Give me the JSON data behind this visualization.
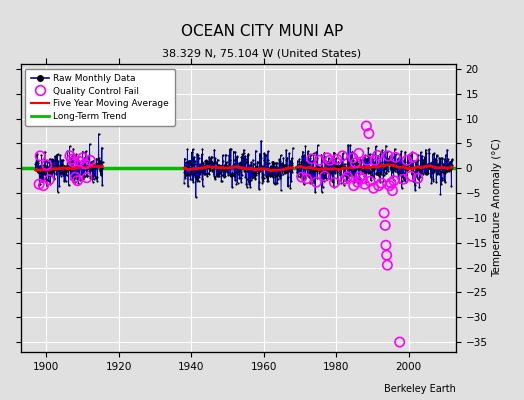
{
  "title": "OCEAN CITY MUNI AP",
  "subtitle": "38.329 N, 75.104 W (United States)",
  "ylabel": "Temperature Anomaly (°C)",
  "credit": "Berkeley Earth",
  "xlim": [
    1893,
    2013
  ],
  "ylim": [
    -37,
    21
  ],
  "yticks": [
    -35,
    -30,
    -25,
    -20,
    -15,
    -10,
    -5,
    0,
    5,
    10,
    15,
    20
  ],
  "xticks": [
    1900,
    1920,
    1940,
    1960,
    1980,
    2000
  ],
  "background_color": "#e0e0e0",
  "plot_bg_color": "#e0e0e0",
  "raw_line_color": "#0000cc",
  "raw_marker_color": "#000000",
  "qc_fail_color": "#ff00ff",
  "moving_avg_color": "#ff0000",
  "trend_color": "#00bb00",
  "seed": 42,
  "early_start": 1897.0,
  "early_end": 1915.5,
  "mid_start": 1938.0,
  "mid_end": 1968.0,
  "late_start": 1969.0,
  "late_end": 2012.0,
  "early_qc": [
    [
      1898.0,
      -3.2
    ],
    [
      1898.3,
      2.5
    ],
    [
      1899.2,
      -3.5
    ],
    [
      1900.1,
      0.7
    ],
    [
      1900.8,
      -2.3
    ],
    [
      1906.5,
      2.5
    ],
    [
      1907.0,
      1.8
    ],
    [
      1907.4,
      1.3
    ],
    [
      1908.0,
      -1.8
    ],
    [
      1908.6,
      -2.5
    ],
    [
      1909.1,
      1.4
    ],
    [
      1910.0,
      2.1
    ],
    [
      1910.7,
      0.9
    ],
    [
      1911.2,
      -1.9
    ],
    [
      1912.1,
      1.6
    ]
  ],
  "late_qc_cluster": [
    [
      1970.5,
      -1.8
    ],
    [
      1971.8,
      -2.1
    ],
    [
      1973.2,
      1.9
    ],
    [
      1974.5,
      -2.8
    ],
    [
      1975.3,
      1.6
    ],
    [
      1976.8,
      -1.6
    ],
    [
      1977.5,
      2.1
    ],
    [
      1978.2,
      1.6
    ],
    [
      1979.5,
      -2.9
    ],
    [
      1980.2,
      1.8
    ],
    [
      1981.7,
      2.5
    ],
    [
      1982.4,
      -2.2
    ],
    [
      1983.1,
      -1.7
    ],
    [
      1984.6,
      2.1
    ],
    [
      1985.3,
      1.1
    ],
    [
      1986.5,
      -1.7
    ],
    [
      1987.2,
      -2.1
    ],
    [
      1988.5,
      1.6
    ],
    [
      1989.3,
      -2.6
    ],
    [
      1990.7,
      1.6
    ],
    [
      1991.4,
      2.6
    ],
    [
      1984.8,
      -3.5
    ],
    [
      1985.9,
      -2.8
    ],
    [
      1986.2,
      3.0
    ],
    [
      1987.8,
      -3.2
    ],
    [
      1988.3,
      8.5
    ],
    [
      1989.0,
      7.0
    ],
    [
      1990.3,
      -4.0
    ],
    [
      1991.7,
      -3.5
    ],
    [
      1992.5,
      -3.0
    ],
    [
      1993.2,
      -9.0
    ],
    [
      1993.5,
      -11.5
    ],
    [
      1993.7,
      -15.5
    ],
    [
      1993.9,
      -17.5
    ],
    [
      1994.1,
      -19.5
    ],
    [
      1994.3,
      2.5
    ],
    [
      1994.7,
      -3.5
    ],
    [
      1995.1,
      -3.0
    ],
    [
      1995.5,
      -4.5
    ],
    [
      1995.9,
      -2.5
    ],
    [
      1996.3,
      2.2
    ],
    [
      1997.5,
      -35.0
    ],
    [
      1998.5,
      -2.2
    ],
    [
      1999.5,
      1.6
    ],
    [
      2000.5,
      -1.6
    ],
    [
      2001.2,
      2.2
    ],
    [
      2002.5,
      -2.0
    ]
  ]
}
